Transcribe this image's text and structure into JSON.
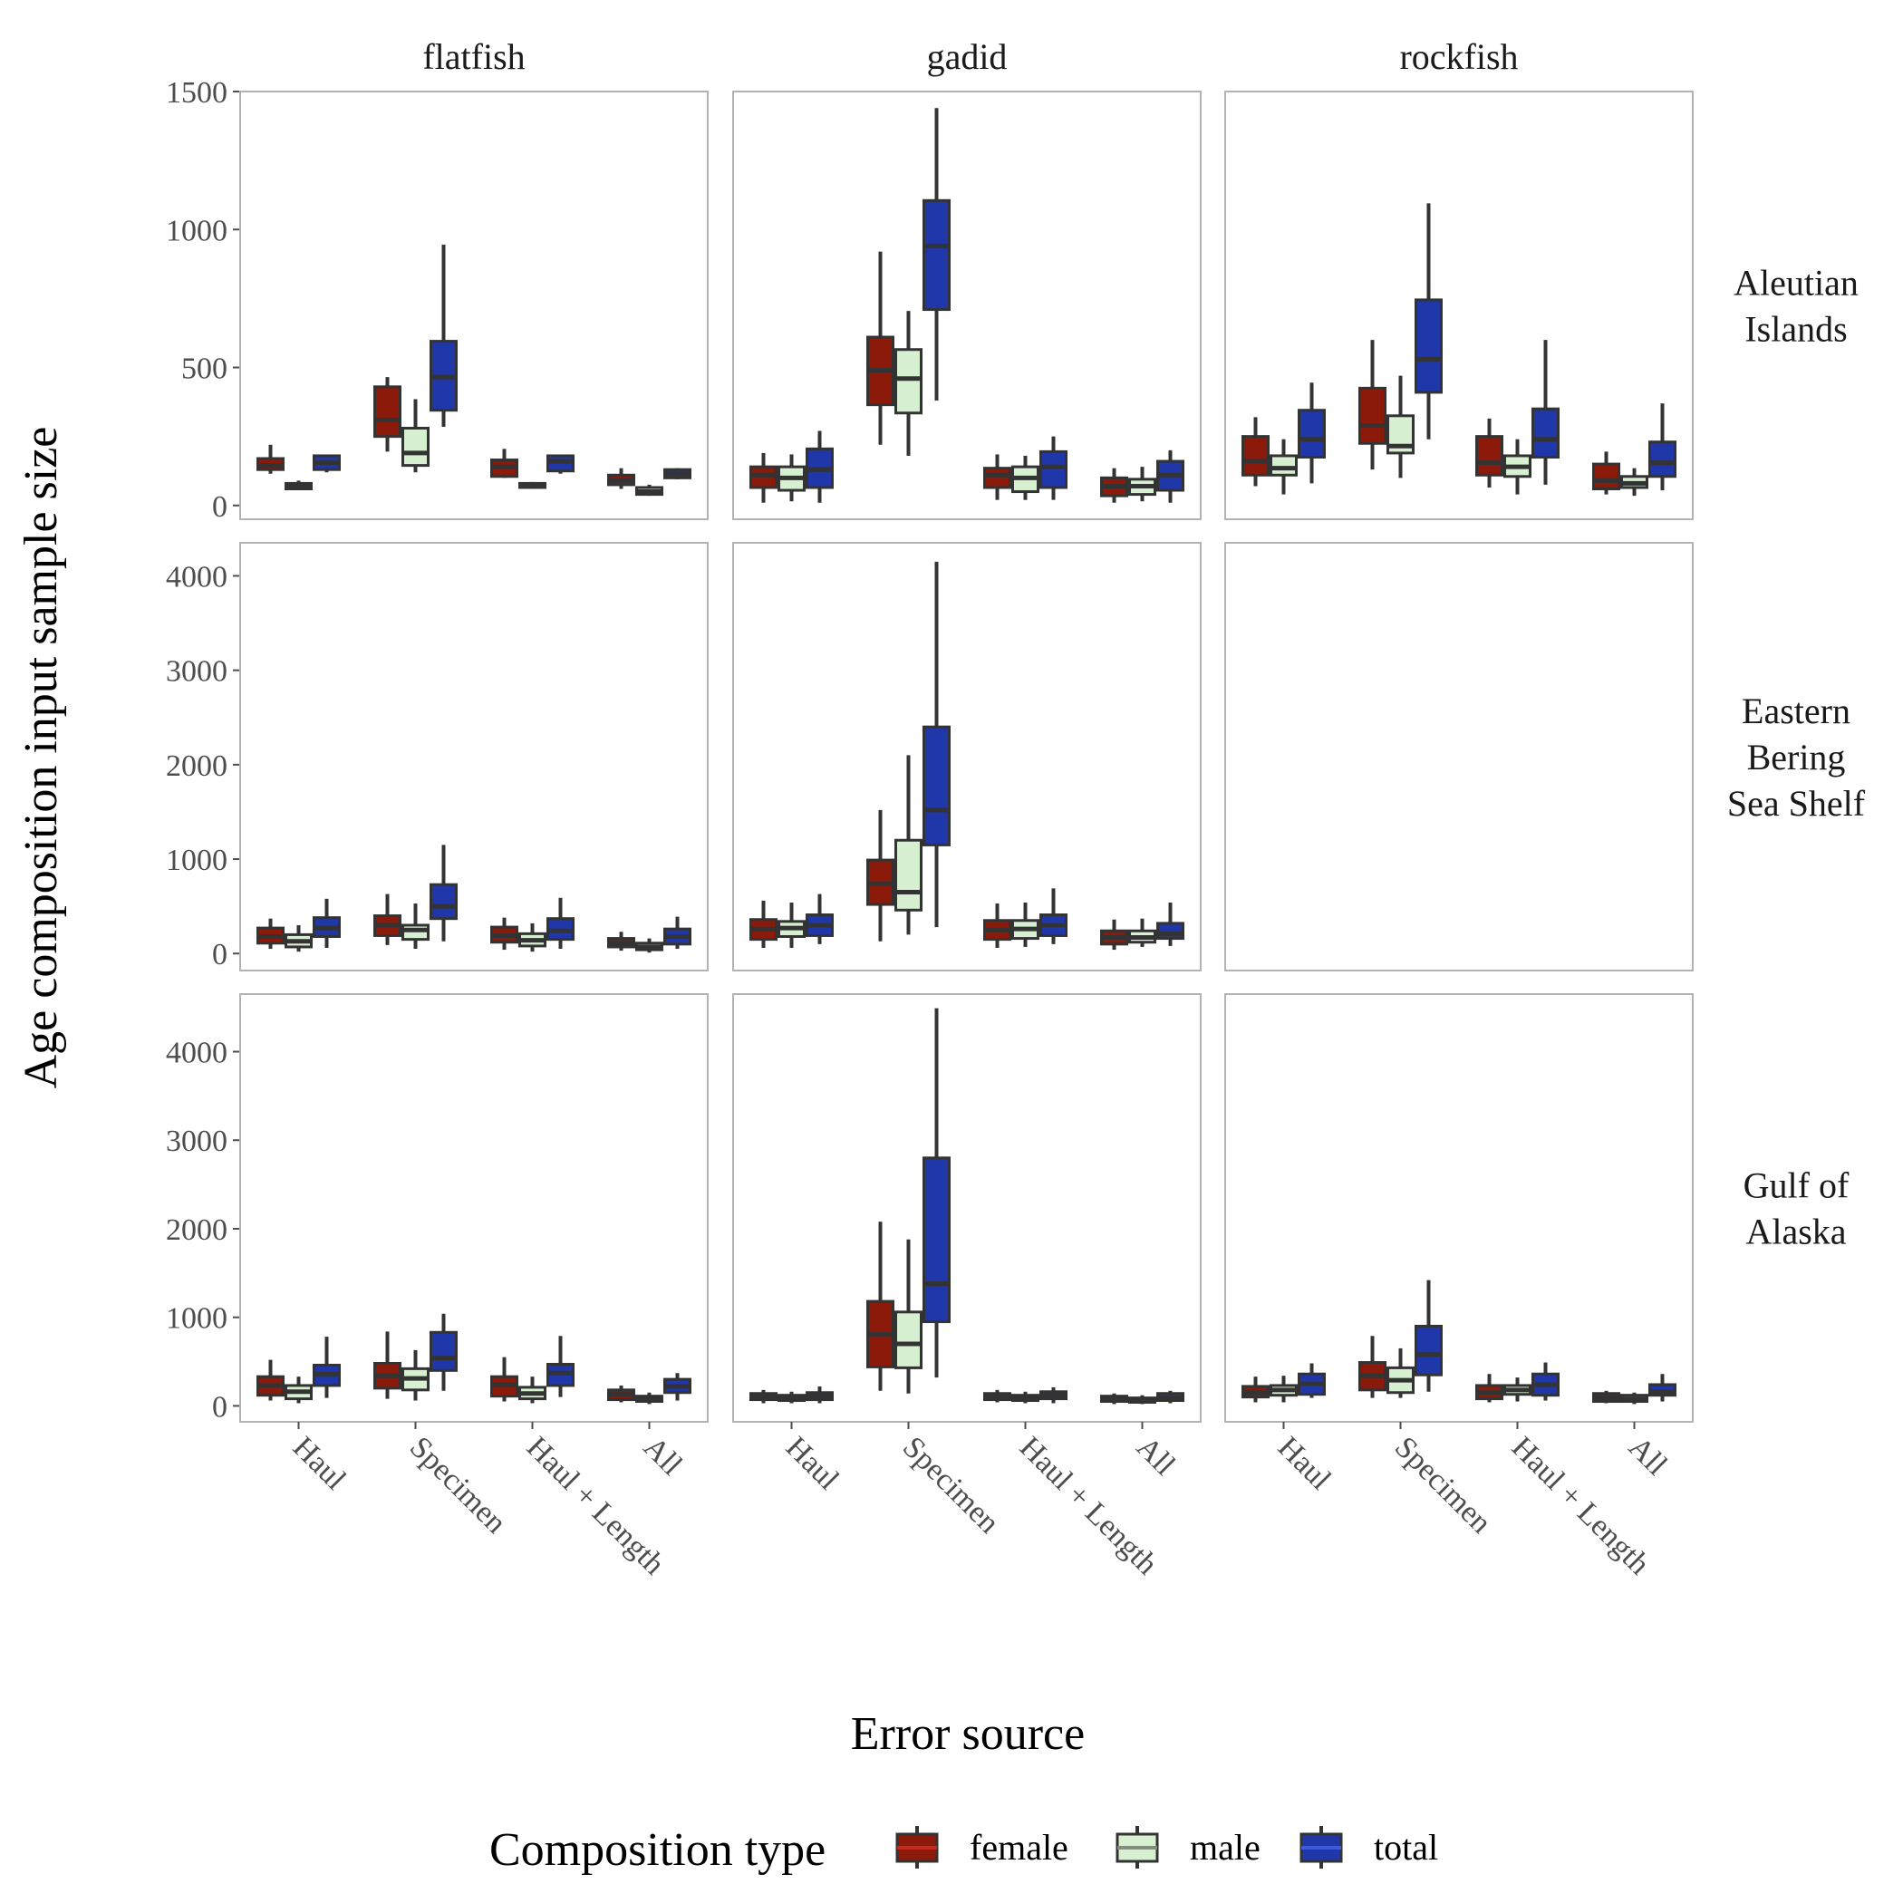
{
  "chart_data": {
    "type": "boxplot",
    "xlabel": "Error source",
    "ylabel": "Age composition input sample size",
    "categories": [
      "Haul",
      "Specimen",
      "Haul + Length",
      "All"
    ],
    "columns": [
      "flatfish",
      "gadid",
      "rockfish"
    ],
    "rows": [
      {
        "name": "Aleutian Islands",
        "lines": [
          "Aleutian",
          "Islands"
        ],
        "ylim": [
          -50,
          1500
        ],
        "yticks": [
          0,
          500,
          1000,
          1500
        ]
      },
      {
        "name": "Eastern Bering Sea Shelf",
        "lines": [
          "Eastern",
          "Bering",
          "Sea Shelf"
        ],
        "ylim": [
          -180,
          4350
        ],
        "yticks": [
          0,
          1000,
          2000,
          3000,
          4000
        ]
      },
      {
        "name": "Gulf of Alaska",
        "lines": [
          "Gulf of",
          "Alaska"
        ],
        "ylim": [
          -180,
          4650
        ],
        "yticks": [
          0,
          1000,
          2000,
          3000,
          4000
        ]
      }
    ],
    "legend": {
      "title": "Composition type",
      "position": "bottom",
      "entries": [
        {
          "name": "female",
          "color": "#8B1A0A"
        },
        {
          "name": "male",
          "color": "#D8F0D2"
        },
        {
          "name": "total",
          "color": "#1F37A8"
        }
      ]
    },
    "panels": [
      {
        "row": 0,
        "col": 0,
        "boxes": [
          [
            [
              115,
              130,
              145,
              170,
              220
            ],
            [
              55,
              60,
              70,
              80,
              90
            ],
            [
              120,
              130,
              155,
              180,
              175
            ]
          ],
          [
            [
              195,
              250,
              310,
              430,
              465
            ],
            [
              120,
              145,
              190,
              280,
              385
            ],
            [
              285,
              345,
              465,
              595,
              945
            ]
          ],
          [
            [
              100,
              105,
              140,
              165,
              205
            ],
            [
              60,
              65,
              70,
              80,
              85
            ],
            [
              115,
              125,
              160,
              180,
              175
            ]
          ],
          [
            [
              60,
              75,
              90,
              110,
              135
            ],
            [
              35,
              40,
              50,
              65,
              75
            ],
            [
              95,
              100,
              115,
              130,
              135
            ]
          ]
        ]
      },
      {
        "row": 0,
        "col": 1,
        "boxes": [
          [
            [
              10,
              65,
              110,
              140,
              190
            ],
            [
              15,
              55,
              100,
              140,
              185
            ],
            [
              10,
              65,
              130,
              205,
              270
            ]
          ],
          [
            [
              220,
              365,
              490,
              610,
              920
            ],
            [
              180,
              335,
              460,
              565,
              705
            ],
            [
              380,
              710,
              940,
              1105,
              1440
            ]
          ],
          [
            [
              20,
              65,
              110,
              135,
              185
            ],
            [
              20,
              50,
              100,
              140,
              180
            ],
            [
              20,
              65,
              140,
              195,
              250
            ]
          ],
          [
            [
              10,
              35,
              70,
              100,
              135
            ],
            [
              15,
              40,
              70,
              95,
              140
            ],
            [
              10,
              55,
              110,
              160,
              200
            ]
          ]
        ]
      },
      {
        "row": 0,
        "col": 2,
        "boxes": [
          [
            [
              70,
              110,
              160,
              250,
              320
            ],
            [
              40,
              110,
              135,
              180,
              240
            ],
            [
              80,
              175,
              240,
              345,
              445
            ]
          ],
          [
            [
              130,
              225,
              290,
              425,
              600
            ],
            [
              100,
              190,
              215,
              325,
              470
            ],
            [
              240,
              410,
              530,
              745,
              1095
            ]
          ],
          [
            [
              65,
              110,
              155,
              250,
              315
            ],
            [
              40,
              105,
              140,
              180,
              240
            ],
            [
              75,
              175,
              240,
              350,
              600
            ]
          ],
          [
            [
              40,
              60,
              90,
              150,
              195
            ],
            [
              35,
              65,
              80,
              105,
              135
            ],
            [
              55,
              105,
              155,
              230,
              370
            ]
          ]
        ]
      },
      {
        "row": 1,
        "col": 0,
        "boxes": [
          [
            [
              50,
              110,
              180,
              270,
              370
            ],
            [
              20,
              70,
              130,
              200,
              300
            ],
            [
              60,
              180,
              270,
              380,
              580
            ]
          ],
          [
            [
              90,
              190,
              300,
              400,
              630
            ],
            [
              50,
              150,
              250,
              300,
              530
            ],
            [
              130,
              370,
              500,
              730,
              1150
            ]
          ],
          [
            [
              40,
              120,
              190,
              280,
              380
            ],
            [
              20,
              80,
              140,
              210,
              320
            ],
            [
              50,
              150,
              240,
              370,
              590
            ]
          ],
          [
            [
              30,
              70,
              110,
              160,
              230
            ],
            [
              10,
              40,
              70,
              110,
              160
            ],
            [
              50,
              100,
              180,
              260,
              390
            ]
          ]
        ]
      },
      {
        "row": 1,
        "col": 1,
        "boxes": [
          [
            [
              60,
              150,
              260,
              360,
              560
            ],
            [
              60,
              180,
              270,
              340,
              540
            ],
            [
              100,
              190,
              300,
              410,
              630
            ]
          ],
          [
            [
              130,
              520,
              740,
              990,
              1520
            ],
            [
              200,
              460,
              650,
              1200,
              2100
            ],
            [
              280,
              1150,
              1520,
              2400,
              4150
            ]
          ],
          [
            [
              60,
              150,
              250,
              350,
              530
            ],
            [
              70,
              160,
              260,
              350,
              540
            ],
            [
              100,
              190,
              300,
              410,
              690
            ]
          ],
          [
            [
              40,
              100,
              170,
              240,
              360
            ],
            [
              70,
              120,
              170,
              240,
              370
            ],
            [
              80,
              160,
              210,
              320,
              540
            ]
          ]
        ]
      },
      {
        "row": 2,
        "col": 0,
        "boxes": [
          [
            [
              60,
              120,
              230,
              330,
              520
            ],
            [
              30,
              80,
              160,
              230,
              330
            ],
            [
              90,
              230,
              360,
              460,
              780
            ]
          ],
          [
            [
              80,
              200,
              340,
              480,
              840
            ],
            [
              60,
              180,
              310,
              420,
              630
            ],
            [
              170,
              400,
              540,
              830,
              1040
            ]
          ],
          [
            [
              50,
              110,
              240,
              330,
              550
            ],
            [
              30,
              80,
              140,
              210,
              330
            ],
            [
              100,
              230,
              370,
              470,
              790
            ]
          ],
          [
            [
              40,
              70,
              130,
              180,
              230
            ],
            [
              20,
              50,
              80,
              110,
              150
            ],
            [
              60,
              150,
              220,
              300,
              370
            ]
          ]
        ]
      },
      {
        "row": 2,
        "col": 1,
        "boxes": [
          [
            [
              30,
              70,
              100,
              140,
              180
            ],
            [
              30,
              60,
              90,
              120,
              160
            ],
            [
              30,
              70,
              110,
              150,
              220
            ]
          ],
          [
            [
              170,
              440,
              810,
              1180,
              2080
            ],
            [
              140,
              430,
              700,
              1060,
              1880
            ],
            [
              320,
              950,
              1380,
              2800,
              4490
            ]
          ],
          [
            [
              40,
              70,
              100,
              140,
              180
            ],
            [
              30,
              60,
              90,
              120,
              160
            ],
            [
              30,
              80,
              120,
              160,
              210
            ]
          ],
          [
            [
              20,
              50,
              80,
              110,
              140
            ],
            [
              20,
              40,
              60,
              90,
              120
            ],
            [
              30,
              60,
              90,
              140,
              170
            ]
          ]
        ]
      },
      {
        "row": 2,
        "col": 2,
        "boxes": [
          [
            [
              40,
              100,
              150,
              220,
              330
            ],
            [
              40,
              120,
              180,
              230,
              340
            ],
            [
              90,
              130,
              250,
              360,
              480
            ]
          ],
          [
            [
              90,
              180,
              340,
              490,
              790
            ],
            [
              90,
              150,
              290,
              430,
              650
            ],
            [
              160,
              350,
              580,
              900,
              1420
            ]
          ],
          [
            [
              40,
              80,
              150,
              230,
              360
            ],
            [
              50,
              130,
              180,
              230,
              320
            ],
            [
              60,
              120,
              240,
              360,
              490
            ]
          ],
          [
            [
              30,
              50,
              90,
              140,
              170
            ],
            [
              20,
              50,
              80,
              120,
              150
            ],
            [
              50,
              120,
              160,
              240,
              360
            ]
          ]
        ]
      }
    ]
  }
}
